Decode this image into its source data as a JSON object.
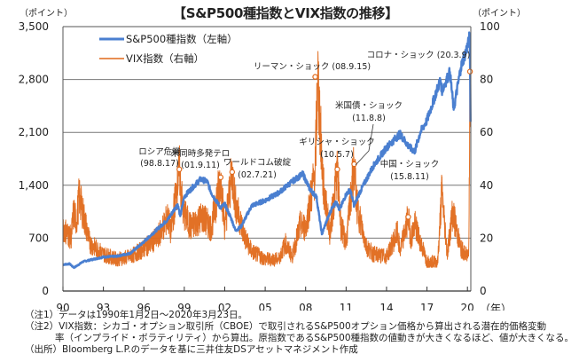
{
  "title": "【S&P500種指数とVIX指数の推移】",
  "left_unit": "（ポイント）",
  "right_unit": "（ポイント）",
  "x_unit": "（年）",
  "notes": [
    "（注1）データは1990年1月2日～2020年3月23日。",
    "（注2）VIX指数：シカゴ・オプション取引所（CBOE）で取引されるS&P500オプション価格から算出される潜在的価格変動",
    "率（インプライド・ボラティリティ）から算出。原指数であるS&P500種指数の値動きが大きくなるほど、値が大きくなる。",
    "（出所）Bloomberg L.P.のデータを基に三井住友DSアセットマネジメント作成"
  ],
  "chart_data": {
    "type": "line",
    "title": "【S&P500種指数とVIX指数の推移】",
    "xlabel": "（年）",
    "ylabel": "（ポイント）",
    "y2label": "（ポイント）",
    "x_range": [
      1990.0,
      2020.25
    ],
    "x_ticks": [
      1990,
      1993,
      1996,
      1999,
      2002,
      2005,
      2008,
      2011,
      2014,
      2017,
      2020
    ],
    "x_tick_labels": [
      "90",
      "93",
      "96",
      "99",
      "02",
      "05",
      "08",
      "11",
      "14",
      "17",
      "20"
    ],
    "ylim": [
      0,
      3500
    ],
    "y_ticks": [
      0,
      700,
      1400,
      2100,
      2800,
      3500
    ],
    "y_tick_labels": [
      "0",
      "700",
      "1,400",
      "2,100",
      "2,800",
      "3,500"
    ],
    "y2lim": [
      0,
      100
    ],
    "y2_ticks": [
      0,
      20,
      40,
      60,
      80,
      100
    ],
    "y2_tick_labels": [
      "0",
      "20",
      "40",
      "60",
      "80",
      "100"
    ],
    "grid": true,
    "legend_position": "top-left",
    "series": [
      {
        "name": "S&P500種指数（左軸）",
        "axis": "left",
        "color": "#4a7fd0",
        "x": [
          1990.0,
          1990.5,
          1990.8,
          1991.0,
          1991.5,
          1992.0,
          1993.0,
          1994.0,
          1995.0,
          1996.0,
          1997.0,
          1997.8,
          1998.5,
          1998.7,
          1999.0,
          1999.5,
          2000.2,
          2000.7,
          2001.0,
          2001.7,
          2002.0,
          2002.5,
          2002.8,
          2003.2,
          2004.0,
          2005.0,
          2006.0,
          2007.0,
          2007.8,
          2008.3,
          2008.8,
          2009.2,
          2009.5,
          2010.0,
          2010.3,
          2010.5,
          2011.0,
          2011.3,
          2011.6,
          2012.0,
          2013.0,
          2014.0,
          2015.0,
          2015.7,
          2016.1,
          2016.5,
          2017.0,
          2018.0,
          2018.1,
          2018.7,
          2018.98,
          2019.5,
          2020.1,
          2020.15,
          2020.2,
          2020.23
        ],
        "values": [
          350,
          360,
          310,
          330,
          390,
          410,
          450,
          460,
          500,
          650,
          820,
          950,
          1150,
          990,
          1250,
          1350,
          1480,
          1450,
          1300,
          1100,
          1150,
          950,
          800,
          850,
          1130,
          1200,
          1300,
          1450,
          1550,
          1350,
          1250,
          750,
          900,
          1120,
          1180,
          1070,
          1280,
          1340,
          1130,
          1300,
          1650,
          1900,
          2080,
          1900,
          1850,
          2100,
          2260,
          2800,
          2650,
          2900,
          2400,
          2950,
          3300,
          3380,
          2900,
          2240
        ]
      },
      {
        "name": "VIX指数（右軸）",
        "axis": "right",
        "color": "#e0691a",
        "x": [
          1990.0,
          1990.6,
          1990.8,
          1991.0,
          1991.2,
          1992.0,
          1993.0,
          1994.0,
          1995.0,
          1996.0,
          1997.0,
          1997.8,
          1998.0,
          1998.63,
          1998.9,
          1999.5,
          2000.3,
          2001.0,
          2001.7,
          2002.0,
          2002.55,
          2002.8,
          2003.5,
          2004.0,
          2005.0,
          2006.0,
          2006.5,
          2007.0,
          2007.6,
          2008.0,
          2008.7,
          2008.9,
          2009.3,
          2009.8,
          2010.35,
          2010.6,
          2011.0,
          2011.6,
          2011.8,
          2012.5,
          2013.0,
          2014.0,
          2014.8,
          2015.0,
          2015.61,
          2015.8,
          2016.1,
          2017.0,
          2017.8,
          2018.1,
          2018.5,
          2018.9,
          2019.5,
          2020.0,
          2020.1,
          2020.19,
          2020.23
        ],
        "values": [
          24,
          20,
          30,
          26,
          36,
          18,
          14,
          12,
          13,
          16,
          20,
          28,
          22,
          46,
          30,
          24,
          28,
          24,
          43,
          24,
          45,
          33,
          20,
          15,
          12,
          12,
          18,
          13,
          25,
          24,
          45,
          81,
          40,
          22,
          46,
          25,
          18,
          48,
          32,
          17,
          14,
          13,
          22,
          15,
          28,
          20,
          25,
          11,
          11,
          38,
          14,
          30,
          16,
          13,
          17,
          83,
          62
        ]
      }
    ],
    "annotations": [
      {
        "label": "ロシア危機",
        "date": "(98.8.17)",
        "x": 1998.63,
        "value": 46
      },
      {
        "label": "米同時多発テロ",
        "date": "(01.9.11)",
        "x": 2001.7,
        "value": 43
      },
      {
        "label": "ワールドコム破綻",
        "date": "(02.7.21)",
        "x": 2002.55,
        "value": 45
      },
      {
        "label": "リーマン・ショック",
        "date": "(08.9.15)",
        "x": 2008.71,
        "value": 81
      },
      {
        "label": "ギリシャ・ショック",
        "date": "(10.5.7)",
        "x": 2010.35,
        "value": 46
      },
      {
        "label": "米国債・ショック",
        "date": "(11.8.8)",
        "x": 2011.6,
        "value": 48
      },
      {
        "label": "中国・ショック",
        "date": "(15.8.11)",
        "x": 2015.61,
        "value": 28
      },
      {
        "label": "コロナ・ショック",
        "date": "(20.3.9)",
        "x": 2020.19,
        "value": 83
      }
    ]
  }
}
